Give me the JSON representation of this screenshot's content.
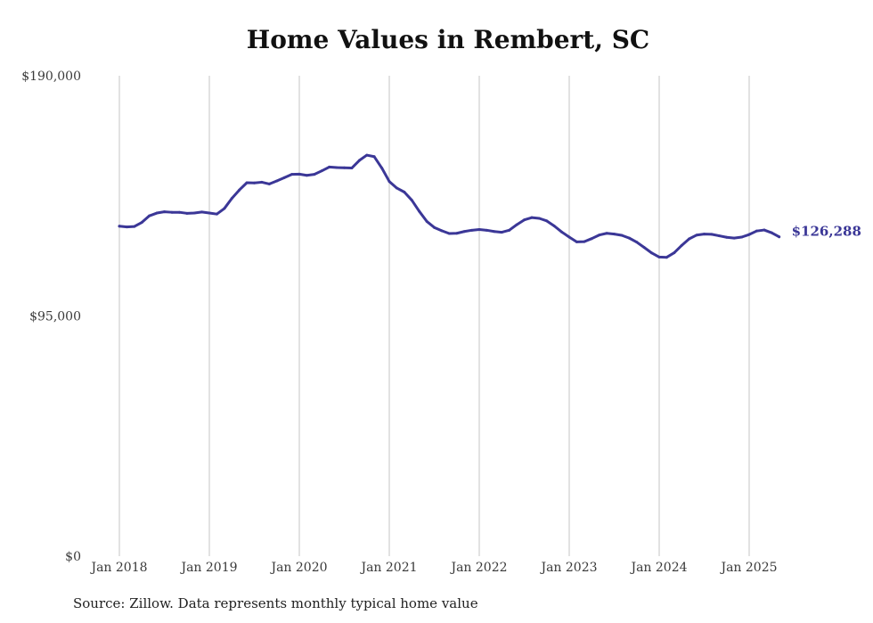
{
  "chart_data": {
    "type": "line",
    "title": "Home Values in Rembert, SC",
    "xlabel": "",
    "ylabel": "",
    "ylim": [
      0,
      190000
    ],
    "y_ticks": [
      {
        "value": 0,
        "label": "$0"
      },
      {
        "value": 95000,
        "label": "$95,000"
      },
      {
        "value": 190000,
        "label": "$190,000"
      }
    ],
    "x_ticks": [
      {
        "value": 2018.0,
        "label": "Jan 2018"
      },
      {
        "value": 2019.0,
        "label": "Jan 2019"
      },
      {
        "value": 2020.0,
        "label": "Jan 2020"
      },
      {
        "value": 2021.0,
        "label": "Jan 2021"
      },
      {
        "value": 2022.0,
        "label": "Jan 2022"
      },
      {
        "value": 2023.0,
        "label": "Jan 2023"
      },
      {
        "value": 2024.0,
        "label": "Jan 2024"
      },
      {
        "value": 2025.0,
        "label": "Jan 2025"
      }
    ],
    "xlim": [
      2018.0,
      2025.333
    ],
    "grid": {
      "vertical": true,
      "horizontal": false
    },
    "series": [
      {
        "color": "#3b3797",
        "end_label": "$126,288",
        "points": [
          [
            2018.0,
            130500
          ],
          [
            2018.083,
            130200
          ],
          [
            2018.167,
            130400
          ],
          [
            2018.25,
            132000
          ],
          [
            2018.333,
            134600
          ],
          [
            2018.417,
            135700
          ],
          [
            2018.5,
            136200
          ],
          [
            2018.583,
            136000
          ],
          [
            2018.667,
            136000
          ],
          [
            2018.75,
            135600
          ],
          [
            2018.833,
            135700
          ],
          [
            2018.917,
            136100
          ],
          [
            2019.0,
            135700
          ],
          [
            2019.083,
            135300
          ],
          [
            2019.167,
            137500
          ],
          [
            2019.25,
            141500
          ],
          [
            2019.333,
            144800
          ],
          [
            2019.417,
            147700
          ],
          [
            2019.5,
            147600
          ],
          [
            2019.583,
            147900
          ],
          [
            2019.667,
            147200
          ],
          [
            2019.75,
            148400
          ],
          [
            2019.833,
            149700
          ],
          [
            2019.917,
            151000
          ],
          [
            2020.0,
            151100
          ],
          [
            2020.083,
            150600
          ],
          [
            2020.167,
            151000
          ],
          [
            2020.25,
            152400
          ],
          [
            2020.333,
            153900
          ],
          [
            2020.417,
            153700
          ],
          [
            2020.5,
            153600
          ],
          [
            2020.583,
            153500
          ],
          [
            2020.667,
            156500
          ],
          [
            2020.75,
            158600
          ],
          [
            2020.833,
            158000
          ],
          [
            2020.917,
            153500
          ],
          [
            2021.0,
            148200
          ],
          [
            2021.083,
            145600
          ],
          [
            2021.167,
            144000
          ],
          [
            2021.25,
            140800
          ],
          [
            2021.333,
            136400
          ],
          [
            2021.417,
            132400
          ],
          [
            2021.5,
            130000
          ],
          [
            2021.583,
            128700
          ],
          [
            2021.667,
            127600
          ],
          [
            2021.75,
            127700
          ],
          [
            2021.833,
            128400
          ],
          [
            2021.917,
            128900
          ],
          [
            2022.0,
            129200
          ],
          [
            2022.083,
            128900
          ],
          [
            2022.167,
            128400
          ],
          [
            2022.25,
            128100
          ],
          [
            2022.333,
            128900
          ],
          [
            2022.417,
            131100
          ],
          [
            2022.5,
            133000
          ],
          [
            2022.583,
            133900
          ],
          [
            2022.667,
            133600
          ],
          [
            2022.75,
            132600
          ],
          [
            2022.833,
            130600
          ],
          [
            2022.917,
            128200
          ],
          [
            2023.0,
            126200
          ],
          [
            2023.083,
            124300
          ],
          [
            2023.167,
            124400
          ],
          [
            2023.25,
            125600
          ],
          [
            2023.333,
            127000
          ],
          [
            2023.417,
            127700
          ],
          [
            2023.5,
            127400
          ],
          [
            2023.583,
            126900
          ],
          [
            2023.667,
            125800
          ],
          [
            2023.75,
            124200
          ],
          [
            2023.833,
            122100
          ],
          [
            2023.917,
            119900
          ],
          [
            2024.0,
            118300
          ],
          [
            2024.083,
            118200
          ],
          [
            2024.167,
            120000
          ],
          [
            2024.25,
            122900
          ],
          [
            2024.333,
            125500
          ],
          [
            2024.417,
            127000
          ],
          [
            2024.5,
            127400
          ],
          [
            2024.583,
            127300
          ],
          [
            2024.667,
            126700
          ],
          [
            2024.75,
            126100
          ],
          [
            2024.833,
            125800
          ],
          [
            2024.917,
            126200
          ],
          [
            2025.0,
            127200
          ],
          [
            2025.083,
            128600
          ],
          [
            2025.167,
            129000
          ],
          [
            2025.25,
            127900
          ],
          [
            2025.333,
            126288
          ]
        ]
      }
    ]
  },
  "source_note": "Source: Zillow. Data represents monthly typical home value"
}
